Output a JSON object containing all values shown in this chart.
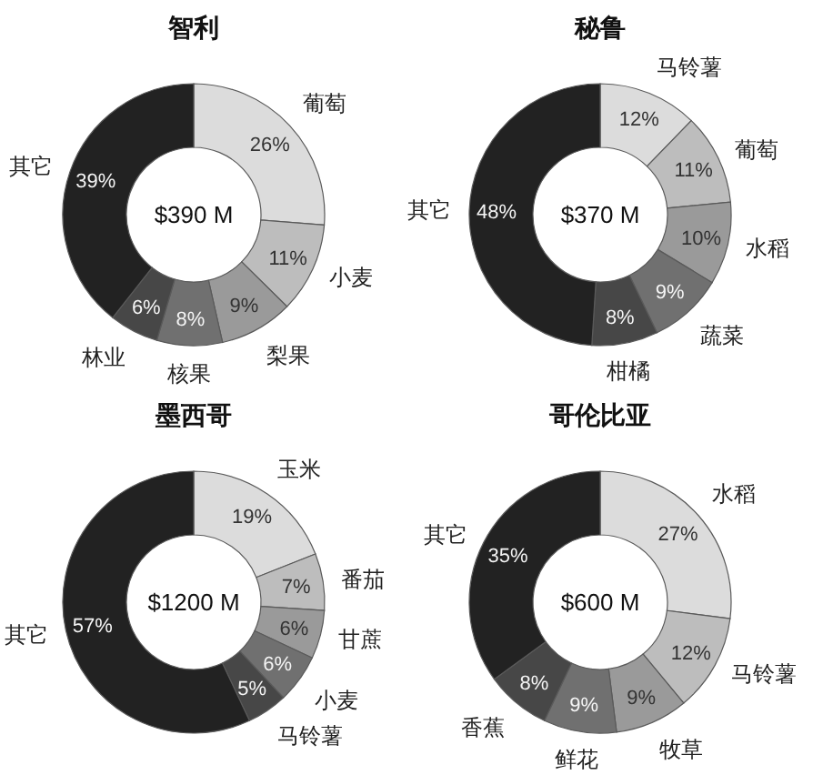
{
  "chart_data": [
    {
      "type": "donut",
      "title": "智利",
      "categories": [
        "葡萄",
        "小麦",
        "梨果",
        "核果",
        "林业",
        "其它"
      ],
      "values": [
        26,
        11,
        9,
        8,
        6,
        39
      ],
      "value_labels": [
        "26%",
        "11%",
        "9%",
        "8%",
        "6%",
        "39%"
      ],
      "colors": [
        "#dcdcdc",
        "#bdbdbd",
        "#9a9a9a",
        "#707070",
        "#474747",
        "#222222"
      ],
      "annotations": [
        "$390 M"
      ]
    },
    {
      "type": "donut",
      "title": "秘鲁",
      "categories": [
        "马铃薯",
        "葡萄",
        "水稻",
        "蔬菜",
        "柑橘",
        "其它"
      ],
      "values": [
        12,
        11,
        10,
        9,
        8,
        48
      ],
      "value_labels": [
        "12%",
        "11%",
        "10%",
        "9%",
        "8%",
        "48%"
      ],
      "colors": [
        "#dcdcdc",
        "#bdbdbd",
        "#9a9a9a",
        "#707070",
        "#474747",
        "#222222"
      ],
      "annotations": [
        "$370 M"
      ]
    },
    {
      "type": "donut",
      "title": "墨西哥",
      "categories": [
        "玉米",
        "番茄",
        "甘蔗",
        "小麦",
        "马铃薯",
        "其它"
      ],
      "values": [
        19,
        7,
        6,
        6,
        5,
        57
      ],
      "value_labels": [
        "19%",
        "7%",
        "6%",
        "6%",
        "5%",
        "57%"
      ],
      "colors": [
        "#dcdcdc",
        "#bdbdbd",
        "#9a9a9a",
        "#707070",
        "#474747",
        "#222222"
      ],
      "annotations": [
        "$1200 M"
      ]
    },
    {
      "type": "donut",
      "title": "哥伦比亚",
      "categories": [
        "水稻",
        "马铃薯",
        "牧草",
        "鲜花",
        "香蕉",
        "其它"
      ],
      "values": [
        27,
        12,
        9,
        9,
        8,
        35
      ],
      "value_labels": [
        "27%",
        "12%",
        "9%",
        "9%",
        "8%",
        "35%"
      ],
      "colors": [
        "#dcdcdc",
        "#bdbdbd",
        "#9a9a9a",
        "#707070",
        "#474747",
        "#222222"
      ],
      "annotations": [
        "$600 M"
      ]
    }
  ]
}
